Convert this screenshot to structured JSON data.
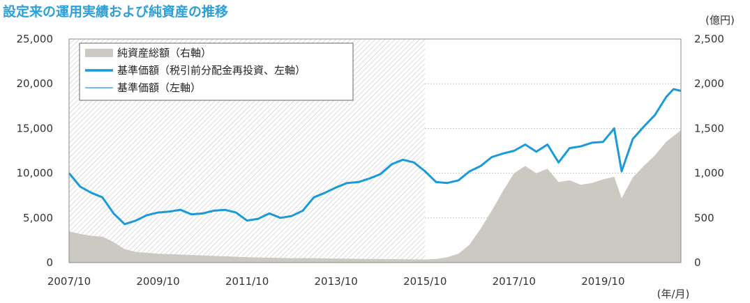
{
  "chart_data": {
    "type": "line",
    "title": "設定来の運用実績および純資産の推移",
    "xlabel": "",
    "ylabel": "",
    "y2_unit": "(億円)",
    "x_unit": "(年/月)",
    "xlim": [
      "2007/10",
      "2021/07"
    ],
    "ylim": [
      0,
      25000
    ],
    "y2lim": [
      0,
      2500
    ],
    "y_ticks": [
      "25,000",
      "20,000",
      "15,000",
      "10,000",
      "5,000",
      "0"
    ],
    "y2_ticks": [
      "2,500",
      "2,000",
      "1,500",
      "1,000",
      "500",
      "0"
    ],
    "x_ticks": [
      "2007/10",
      "2009/10",
      "2011/10",
      "2013/10",
      "2015/10",
      "2017/10",
      "2019/10"
    ],
    "grid": true,
    "hatched_region": [
      "2007/10",
      "2015/10"
    ],
    "legend_position": "top-left",
    "series": [
      {
        "name": "純資産総額（右軸）",
        "axis": "right",
        "style": "area",
        "color": "#ccc8c2",
        "points": [
          [
            "2007/10",
            350
          ],
          [
            "2008/01",
            320
          ],
          [
            "2008/04",
            300
          ],
          [
            "2008/07",
            290
          ],
          [
            "2008/10",
            230
          ],
          [
            "2009/01",
            150
          ],
          [
            "2009/04",
            120
          ],
          [
            "2009/10",
            100
          ],
          [
            "2010/04",
            90
          ],
          [
            "2010/10",
            80
          ],
          [
            "2011/04",
            70
          ],
          [
            "2011/10",
            60
          ],
          [
            "2012/04",
            55
          ],
          [
            "2012/10",
            50
          ],
          [
            "2013/04",
            50
          ],
          [
            "2013/10",
            45
          ],
          [
            "2014/04",
            42
          ],
          [
            "2014/10",
            40
          ],
          [
            "2015/04",
            38
          ],
          [
            "2015/10",
            35
          ],
          [
            "2016/01",
            40
          ],
          [
            "2016/04",
            60
          ],
          [
            "2016/07",
            100
          ],
          [
            "2016/10",
            200
          ],
          [
            "2017/01",
            380
          ],
          [
            "2017/04",
            580
          ],
          [
            "2017/07",
            800
          ],
          [
            "2017/10",
            1000
          ],
          [
            "2018/01",
            1080
          ],
          [
            "2018/04",
            1000
          ],
          [
            "2018/07",
            1050
          ],
          [
            "2018/10",
            900
          ],
          [
            "2019/01",
            920
          ],
          [
            "2019/04",
            870
          ],
          [
            "2019/07",
            890
          ],
          [
            "2019/10",
            930
          ],
          [
            "2020/01",
            960
          ],
          [
            "2020/03",
            720
          ],
          [
            "2020/06",
            950
          ],
          [
            "2020/09",
            1080
          ],
          [
            "2020/12",
            1200
          ],
          [
            "2021/03",
            1350
          ],
          [
            "2021/07",
            1480
          ]
        ]
      },
      {
        "name": "基準価額（税引前分配金再投資、左軸）",
        "axis": "left",
        "style": "thick",
        "color": "#1a9ad6",
        "points": [
          [
            "2007/10",
            10000
          ],
          [
            "2008/01",
            8500
          ],
          [
            "2008/04",
            7800
          ],
          [
            "2008/07",
            7300
          ],
          [
            "2008/10",
            5500
          ],
          [
            "2009/01",
            4300
          ],
          [
            "2009/04",
            4700
          ],
          [
            "2009/07",
            5300
          ],
          [
            "2009/10",
            5600
          ],
          [
            "2010/01",
            5700
          ],
          [
            "2010/04",
            5900
          ],
          [
            "2010/07",
            5400
          ],
          [
            "2010/10",
            5500
          ],
          [
            "2011/01",
            5800
          ],
          [
            "2011/04",
            5900
          ],
          [
            "2011/07",
            5600
          ],
          [
            "2011/10",
            4700
          ],
          [
            "2012/01",
            4900
          ],
          [
            "2012/04",
            5500
          ],
          [
            "2012/07",
            5000
          ],
          [
            "2012/10",
            5200
          ],
          [
            "2013/01",
            5800
          ],
          [
            "2013/04",
            7300
          ],
          [
            "2013/07",
            7800
          ],
          [
            "2013/10",
            8400
          ],
          [
            "2014/01",
            8900
          ],
          [
            "2014/04",
            9000
          ],
          [
            "2014/07",
            9400
          ],
          [
            "2014/10",
            9900
          ],
          [
            "2015/01",
            11000
          ],
          [
            "2015/04",
            11500
          ],
          [
            "2015/07",
            11200
          ],
          [
            "2015/10",
            10200
          ],
          [
            "2016/01",
            9000
          ],
          [
            "2016/04",
            8900
          ],
          [
            "2016/07",
            9200
          ],
          [
            "2016/10",
            10200
          ],
          [
            "2017/01",
            10800
          ],
          [
            "2017/04",
            11800
          ],
          [
            "2017/07",
            12200
          ],
          [
            "2017/10",
            12500
          ],
          [
            "2018/01",
            13200
          ],
          [
            "2018/04",
            12400
          ],
          [
            "2018/07",
            13200
          ],
          [
            "2018/10",
            11200
          ],
          [
            "2019/01",
            12800
          ],
          [
            "2019/04",
            13000
          ],
          [
            "2019/07",
            13400
          ],
          [
            "2019/10",
            13500
          ],
          [
            "2020/01",
            15000
          ],
          [
            "2020/03",
            10200
          ],
          [
            "2020/06",
            13800
          ],
          [
            "2020/09",
            15200
          ],
          [
            "2020/12",
            16500
          ],
          [
            "2021/03",
            18500
          ],
          [
            "2021/05",
            19400
          ],
          [
            "2021/07",
            19200
          ]
        ]
      },
      {
        "name": "基準価額（左軸）",
        "axis": "left",
        "style": "thin",
        "color": "#1a9ad6",
        "points": [
          [
            "2007/10",
            10000
          ],
          [
            "2008/01",
            8500
          ],
          [
            "2008/04",
            7800
          ],
          [
            "2008/07",
            7300
          ],
          [
            "2008/10",
            5500
          ],
          [
            "2009/01",
            4300
          ],
          [
            "2009/04",
            4700
          ],
          [
            "2009/07",
            5300
          ],
          [
            "2009/10",
            5600
          ],
          [
            "2010/01",
            5700
          ],
          [
            "2010/04",
            5900
          ],
          [
            "2010/07",
            5400
          ],
          [
            "2010/10",
            5500
          ],
          [
            "2011/01",
            5800
          ],
          [
            "2011/04",
            5900
          ],
          [
            "2011/07",
            5600
          ],
          [
            "2011/10",
            4700
          ],
          [
            "2012/01",
            4900
          ],
          [
            "2012/04",
            5500
          ],
          [
            "2012/07",
            5000
          ],
          [
            "2012/10",
            5200
          ],
          [
            "2013/01",
            5800
          ],
          [
            "2013/04",
            7300
          ],
          [
            "2013/07",
            7800
          ],
          [
            "2013/10",
            8400
          ],
          [
            "2014/01",
            8900
          ],
          [
            "2014/04",
            9000
          ],
          [
            "2014/07",
            9400
          ],
          [
            "2014/10",
            9900
          ],
          [
            "2015/01",
            11000
          ],
          [
            "2015/04",
            11500
          ],
          [
            "2015/07",
            11200
          ],
          [
            "2015/10",
            10200
          ],
          [
            "2016/01",
            9000
          ],
          [
            "2016/04",
            8900
          ],
          [
            "2016/07",
            9200
          ],
          [
            "2016/10",
            10200
          ],
          [
            "2017/01",
            10800
          ],
          [
            "2017/04",
            11800
          ],
          [
            "2017/07",
            12200
          ],
          [
            "2017/10",
            12500
          ],
          [
            "2018/01",
            13200
          ],
          [
            "2018/04",
            12400
          ],
          [
            "2018/07",
            13200
          ],
          [
            "2018/10",
            11200
          ],
          [
            "2019/01",
            12800
          ],
          [
            "2019/04",
            13000
          ],
          [
            "2019/07",
            13400
          ],
          [
            "2019/10",
            13500
          ],
          [
            "2020/01",
            15000
          ],
          [
            "2020/03",
            10200
          ],
          [
            "2020/06",
            13800
          ],
          [
            "2020/09",
            15200
          ],
          [
            "2020/12",
            16500
          ],
          [
            "2021/03",
            18500
          ],
          [
            "2021/05",
            19400
          ],
          [
            "2021/07",
            19200
          ]
        ]
      }
    ]
  }
}
